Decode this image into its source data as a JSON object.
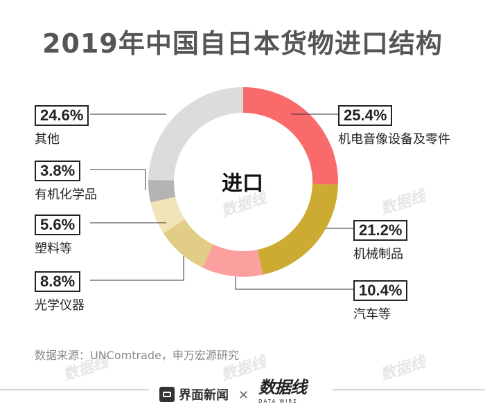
{
  "title": "2019年中国自日本货物进口结构",
  "center_label": "进口",
  "source": "数据来源：UNComtrade，申万宏源研究",
  "footer": {
    "brand": "界面新闻",
    "times": "×",
    "logo": "数据线",
    "logo_sub": "DATA WIRE"
  },
  "watermark": "数据线",
  "chart_data": {
    "type": "pie",
    "donut": true,
    "slices": [
      {
        "label": "机电音像设备及零件",
        "value": 25.4,
        "display": "25.4%",
        "color": "#f96b6b"
      },
      {
        "label": "机械制品",
        "value": 21.2,
        "display": "21.2%",
        "color": "#cdab33"
      },
      {
        "label": "汽车等",
        "value": 10.4,
        "display": "10.4%",
        "color": "#fba09e"
      },
      {
        "label": "光学仪器",
        "value": 8.8,
        "display": "8.8%",
        "color": "#e2cd86"
      },
      {
        "label": "塑料等",
        "value": 5.6,
        "display": "5.6%",
        "color": "#f1e4b8"
      },
      {
        "label": "有机化学品",
        "value": 3.8,
        "display": "3.8%",
        "color": "#b3b3b3"
      },
      {
        "label": "其他",
        "value": 24.6,
        "display": "24.6%",
        "color": "#dcdcdc"
      }
    ]
  }
}
